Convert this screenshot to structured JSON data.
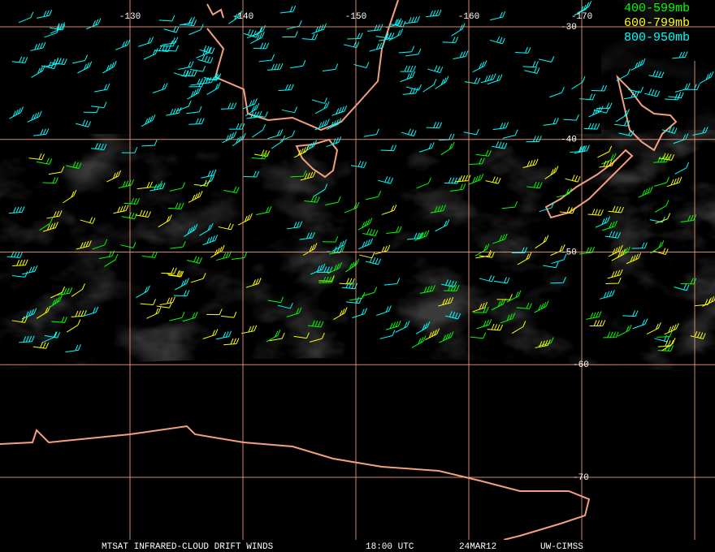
{
  "map": {
    "longitudes": [
      -130,
      -140,
      -150,
      -160,
      -170
    ],
    "latitudes": [
      -30,
      -40,
      -50,
      -60,
      -70
    ],
    "legend": [
      {
        "label": "400-599mb",
        "color": "#00ff00"
      },
      {
        "label": "600-799mb",
        "color": "#ffff00"
      },
      {
        "label": "800-950mb",
        "color": "#00ffff"
      }
    ],
    "footer": [
      "MTSAT INFRARED-CLOUD DRIFT WINDS",
      "18:00 UTC",
      "24MAR12",
      "UW-CIMSS"
    ]
  }
}
